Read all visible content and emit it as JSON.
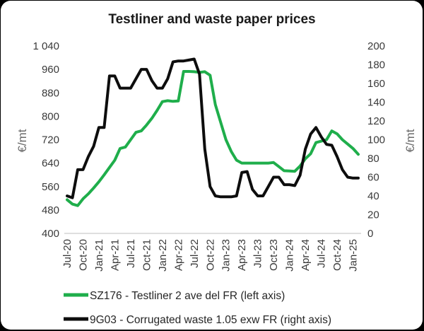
{
  "chart_data": {
    "type": "line",
    "title": "Testliner and waste paper prices",
    "ylabel_left": "€/mt",
    "ylabel_right": "€/mt",
    "left_axis": {
      "min": 400,
      "max": 1040,
      "ticks": [
        400,
        480,
        560,
        640,
        720,
        800,
        880,
        960,
        1040
      ],
      "tick_labels": [
        "400",
        "480",
        "560",
        "640",
        "720",
        "800",
        "880",
        "960",
        "1 040"
      ]
    },
    "right_axis": {
      "min": 0,
      "max": 200,
      "ticks": [
        0,
        20,
        40,
        60,
        80,
        100,
        120,
        140,
        160,
        180,
        200
      ],
      "tick_labels": [
        "0",
        "20",
        "40",
        "60",
        "80",
        "100",
        "120",
        "140",
        "160",
        "180",
        "200"
      ]
    },
    "x_tick_labels": [
      "Jul-20",
      "Oct-20",
      "Jan-21",
      "Apr-21",
      "Jul-21",
      "Oct-21",
      "Jan-22",
      "Apr-22",
      "Jul-22",
      "Oct-22",
      "Jan-23",
      "Apr-23",
      "Jul-23",
      "Oct-23",
      "Jan-24",
      "Apr-24",
      "Jul-24",
      "Oct-24",
      "Jan-25"
    ],
    "x_tick_months": [
      0,
      3,
      6,
      9,
      12,
      15,
      18,
      21,
      24,
      27,
      30,
      33,
      36,
      39,
      42,
      45,
      48,
      51,
      54
    ],
    "series": [
      {
        "name": "SZ176 - Testliner 2 ave del FR (left axis)",
        "axis": "left",
        "color": "#1fae4b",
        "points": [
          [
            0,
            515
          ],
          [
            1,
            500
          ],
          [
            2,
            495
          ],
          [
            3,
            518
          ],
          [
            4,
            535
          ],
          [
            5,
            555
          ],
          [
            6,
            576
          ],
          [
            7,
            600
          ],
          [
            8,
            625
          ],
          [
            9,
            650
          ],
          [
            10,
            690
          ],
          [
            11,
            695
          ],
          [
            12,
            720
          ],
          [
            13,
            745
          ],
          [
            14,
            750
          ],
          [
            15,
            770
          ],
          [
            16,
            793
          ],
          [
            17,
            820
          ],
          [
            18,
            850
          ],
          [
            19,
            853
          ],
          [
            20,
            851
          ],
          [
            21,
            852
          ],
          [
            22,
            953
          ],
          [
            23,
            953
          ],
          [
            24,
            952
          ],
          [
            25,
            950
          ],
          [
            26,
            952
          ],
          [
            27,
            940
          ],
          [
            28,
            840
          ],
          [
            29,
            780
          ],
          [
            30,
            720
          ],
          [
            31,
            680
          ],
          [
            32,
            650
          ],
          [
            33,
            640
          ],
          [
            34,
            640
          ],
          [
            35,
            640
          ],
          [
            36,
            640
          ],
          [
            37,
            640
          ],
          [
            38,
            640
          ],
          [
            39,
            642
          ],
          [
            40,
            628
          ],
          [
            41,
            614
          ],
          [
            42,
            613
          ],
          [
            43,
            612
          ],
          [
            44,
            630
          ],
          [
            45,
            655
          ],
          [
            46,
            672
          ],
          [
            47,
            710
          ],
          [
            48,
            715
          ],
          [
            49,
            720
          ],
          [
            50,
            750
          ],
          [
            51,
            740
          ],
          [
            52,
            720
          ],
          [
            53,
            705
          ],
          [
            54,
            690
          ],
          [
            55,
            670
          ]
        ]
      },
      {
        "name": "9G03 - Corrugated waste 1.05 exw FR (right axis)",
        "axis": "right",
        "color": "#0d0d0d",
        "points": [
          [
            0,
            40
          ],
          [
            1,
            38
          ],
          [
            2,
            68
          ],
          [
            3,
            68
          ],
          [
            4,
            82
          ],
          [
            5,
            93
          ],
          [
            6,
            113
          ],
          [
            7,
            113
          ],
          [
            8,
            168
          ],
          [
            9,
            168
          ],
          [
            10,
            155
          ],
          [
            11,
            155
          ],
          [
            12,
            155
          ],
          [
            13,
            165
          ],
          [
            14,
            175
          ],
          [
            15,
            175
          ],
          [
            16,
            163
          ],
          [
            17,
            155
          ],
          [
            18,
            155
          ],
          [
            19,
            165
          ],
          [
            20,
            183
          ],
          [
            21,
            184
          ],
          [
            22,
            184
          ],
          [
            23,
            185
          ],
          [
            24,
            186
          ],
          [
            25,
            170
          ],
          [
            26,
            90
          ],
          [
            27,
            50
          ],
          [
            28,
            40
          ],
          [
            29,
            39
          ],
          [
            30,
            39
          ],
          [
            31,
            39
          ],
          [
            32,
            40
          ],
          [
            33,
            65
          ],
          [
            34,
            66
          ],
          [
            35,
            47
          ],
          [
            36,
            40
          ],
          [
            37,
            40
          ],
          [
            38,
            50
          ],
          [
            39,
            60
          ],
          [
            40,
            60
          ],
          [
            41,
            52
          ],
          [
            42,
            52
          ],
          [
            43,
            51
          ],
          [
            44,
            62
          ],
          [
            45,
            90
          ],
          [
            46,
            106
          ],
          [
            47,
            113
          ],
          [
            48,
            103
          ],
          [
            49,
            95
          ],
          [
            50,
            94
          ],
          [
            51,
            82
          ],
          [
            52,
            68
          ],
          [
            53,
            60
          ],
          [
            54,
            59
          ],
          [
            55,
            59
          ]
        ]
      }
    ],
    "legend_position": "bottom-left",
    "grid": false
  }
}
